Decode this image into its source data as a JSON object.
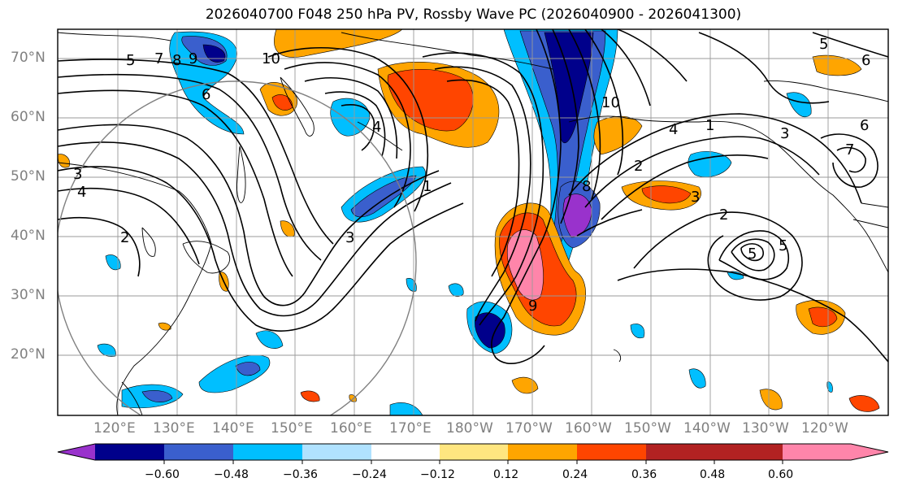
{
  "title": "2026040700 F048 250 hPa PV, Rossby Wave PC (2026040900 - 2026041300)",
  "lat_labels": [
    "70°N",
    "60°N",
    "50°N",
    "40°N",
    "30°N",
    "20°N"
  ],
  "lon_labels": [
    "120°E",
    "130°E",
    "140°E",
    "150°E",
    "160°E",
    "170°E",
    "180°W",
    "170°W",
    "160°W",
    "150°W",
    "140°W",
    "130°W",
    "120°W"
  ],
  "colorbar": {
    "ticks": [
      "−0.60",
      "−0.48",
      "−0.36",
      "−0.24",
      "−0.12",
      "0.12",
      "0.24",
      "0.36",
      "0.48",
      "0.60"
    ],
    "colors": [
      "#9932cc",
      "#00008b",
      "#3a5fcd",
      "#00bfff",
      "#b0e2ff",
      "#ffffff",
      "#ffe680",
      "#ffa500",
      "#ff4500",
      "#b22222",
      "#ff85aa"
    ]
  },
  "contour_labels": [
    "5",
    "7",
    "8",
    "9",
    "6",
    "10",
    "3",
    "4",
    "2",
    "1",
    "2",
    "3",
    "5",
    "10",
    "9",
    "8",
    "4",
    "1",
    "5",
    "6",
    "2",
    "3",
    "4",
    "5",
    "3",
    "6",
    "7"
  ]
}
